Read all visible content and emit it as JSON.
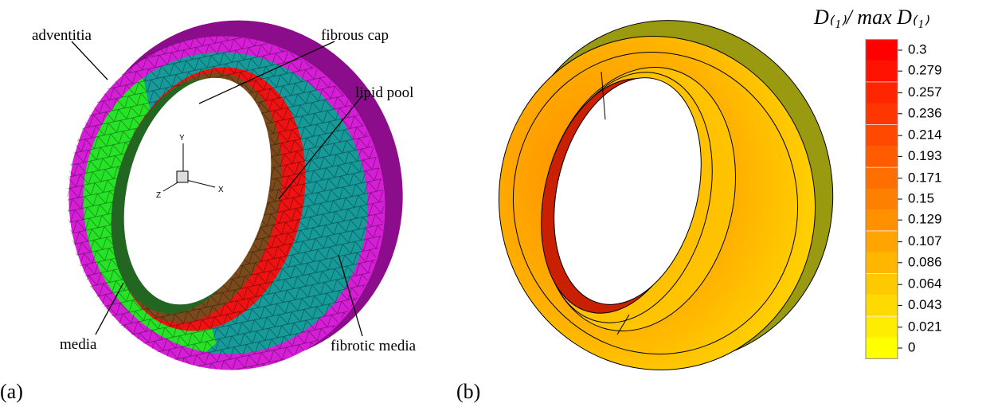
{
  "panels": {
    "a": {
      "label": "(a)",
      "annotations": [
        "adventitia",
        "fibrous cap",
        "lipid pool",
        "media",
        "fibrotic media"
      ],
      "axes": [
        "Y",
        "X",
        "Z"
      ]
    },
    "b": {
      "label": "(b)",
      "colorbar": {
        "title": "D₍₁₎/ max D₍₁₎",
        "ticks": [
          0.3,
          0.279,
          0.257,
          0.236,
          0.214,
          0.193,
          0.171,
          0.15,
          0.129,
          0.107,
          0.086,
          0.064,
          0.043,
          0.021,
          0
        ]
      }
    }
  }
}
